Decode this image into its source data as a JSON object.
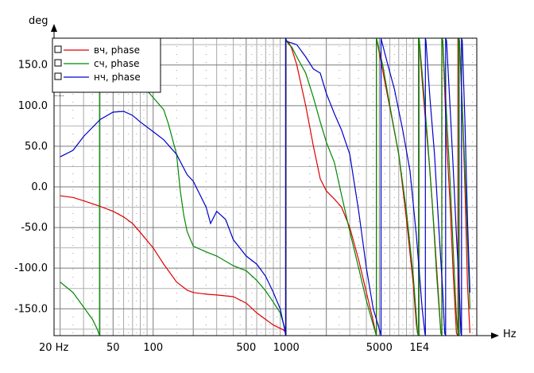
{
  "chart_data": {
    "type": "line",
    "y_unit_label": "deg",
    "x_unit_label": "Hz",
    "x_scale": "log",
    "xlim": [
      18,
      27000
    ],
    "ylim": [
      -183,
      183
    ],
    "grid": true,
    "legend_position": "top-left",
    "x_ticks": [
      {
        "value": 20,
        "label": "20 Hz"
      },
      {
        "value": 50,
        "label": "50"
      },
      {
        "value": 100,
        "label": "100"
      },
      {
        "value": 500,
        "label": "500"
      },
      {
        "value": 1000,
        "label": "1000"
      },
      {
        "value": 5000,
        "label": "5000"
      },
      {
        "value": 10000,
        "label": "1E4"
      }
    ],
    "y_ticks": [
      {
        "value": 150,
        "label": "150.0"
      },
      {
        "value": 100,
        "label": "100.0"
      },
      {
        "value": 50,
        "label": "50.0"
      },
      {
        "value": 0,
        "label": "0.0"
      },
      {
        "value": -50,
        "label": "-50.0"
      },
      {
        "value": -100,
        "label": "-100.0"
      },
      {
        "value": -150,
        "label": "-150.0"
      }
    ],
    "series": [
      {
        "name": "вч, phase",
        "color": "#e00000",
        "points": [
          [
            20,
            -11
          ],
          [
            25,
            -13
          ],
          [
            30,
            -17
          ],
          [
            40,
            -24
          ],
          [
            50,
            -30
          ],
          [
            60,
            -37
          ],
          [
            70,
            -45
          ],
          [
            80,
            -56
          ],
          [
            100,
            -75
          ],
          [
            120,
            -95
          ],
          [
            150,
            -117
          ],
          [
            180,
            -127
          ],
          [
            200,
            -130
          ],
          [
            250,
            -132
          ],
          [
            300,
            -133
          ],
          [
            400,
            -135
          ],
          [
            500,
            -143
          ],
          [
            600,
            -155
          ],
          [
            700,
            -163
          ],
          [
            800,
            -170
          ],
          [
            900,
            -174
          ],
          [
            950,
            -176
          ],
          [
            980,
            -178
          ],
          [
            1000,
            180
          ],
          [
            1050,
            177
          ],
          [
            1100,
            170
          ],
          [
            1200,
            150
          ],
          [
            1400,
            100
          ],
          [
            1600,
            50
          ],
          [
            1800,
            10
          ],
          [
            2000,
            -5
          ],
          [
            2300,
            -15
          ],
          [
            2600,
            -25
          ],
          [
            3000,
            -50
          ],
          [
            3500,
            -90
          ],
          [
            4000,
            -130
          ],
          [
            4500,
            -165
          ],
          [
            4700,
            -180
          ],
          [
            4800,
            180
          ],
          [
            5200,
            150
          ],
          [
            5800,
            110
          ],
          [
            6300,
            80
          ],
          [
            7000,
            40
          ],
          [
            8000,
            -40
          ],
          [
            9000,
            -120
          ],
          [
            9500,
            -170
          ],
          [
            9700,
            -180
          ],
          [
            10000,
            180
          ],
          [
            10500,
            130
          ],
          [
            11000,
            90
          ],
          [
            12000,
            20
          ],
          [
            13000,
            -60
          ],
          [
            14000,
            -140
          ],
          [
            14500,
            -180
          ],
          [
            15000,
            180
          ],
          [
            15500,
            120
          ],
          [
            16000,
            60
          ],
          [
            17000,
            -20
          ],
          [
            18000,
            -110
          ],
          [
            19000,
            -180
          ],
          [
            20000,
            180
          ],
          [
            21000,
            100
          ],
          [
            22000,
            0
          ],
          [
            23000,
            -120
          ],
          [
            24000,
            -180
          ]
        ]
      },
      {
        "name": "сч, phase",
        "color": "#008800",
        "points": [
          [
            20,
            -117
          ],
          [
            25,
            -130
          ],
          [
            30,
            -148
          ],
          [
            35,
            -163
          ],
          [
            38,
            -175
          ],
          [
            39,
            -180
          ],
          [
            40,
            180
          ],
          [
            41,
            178
          ],
          [
            45,
            172
          ],
          [
            50,
            162
          ],
          [
            60,
            152
          ],
          [
            70,
            140
          ],
          [
            80,
            128
          ],
          [
            100,
            110
          ],
          [
            120,
            95
          ],
          [
            130,
            78
          ],
          [
            150,
            40
          ],
          [
            160,
            -5
          ],
          [
            170,
            -35
          ],
          [
            180,
            -55
          ],
          [
            200,
            -73
          ],
          [
            250,
            -80
          ],
          [
            300,
            -85
          ],
          [
            400,
            -97
          ],
          [
            500,
            -103
          ],
          [
            600,
            -115
          ],
          [
            700,
            -128
          ],
          [
            800,
            -142
          ],
          [
            900,
            -155
          ],
          [
            980,
            -175
          ],
          [
            1000,
            180
          ],
          [
            1050,
            175
          ],
          [
            1100,
            172
          ],
          [
            1200,
            160
          ],
          [
            1400,
            140
          ],
          [
            1600,
            110
          ],
          [
            1800,
            80
          ],
          [
            2000,
            55
          ],
          [
            2300,
            30
          ],
          [
            2600,
            -10
          ],
          [
            3000,
            -55
          ],
          [
            3500,
            -100
          ],
          [
            4000,
            -140
          ],
          [
            4500,
            -170
          ],
          [
            4700,
            -180
          ],
          [
            4800,
            180
          ],
          [
            5300,
            150
          ],
          [
            6000,
            100
          ],
          [
            7000,
            40
          ],
          [
            8000,
            -30
          ],
          [
            9000,
            -110
          ],
          [
            9500,
            -160
          ],
          [
            9700,
            -180
          ],
          [
            10000,
            180
          ],
          [
            10500,
            140
          ],
          [
            11500,
            60
          ],
          [
            12500,
            -20
          ],
          [
            13500,
            -110
          ],
          [
            14500,
            -180
          ],
          [
            15000,
            180
          ],
          [
            16000,
            90
          ],
          [
            17000,
            10
          ],
          [
            18000,
            -80
          ],
          [
            19000,
            -160
          ],
          [
            19500,
            -180
          ],
          [
            20000,
            180
          ],
          [
            21000,
            100
          ],
          [
            22500,
            -20
          ],
          [
            24000,
            -150
          ]
        ]
      },
      {
        "name": "нч, phase",
        "color": "#0000cc",
        "points": [
          [
            20,
            37
          ],
          [
            25,
            45
          ],
          [
            30,
            62
          ],
          [
            40,
            83
          ],
          [
            50,
            92
          ],
          [
            60,
            93
          ],
          [
            70,
            88
          ],
          [
            80,
            80
          ],
          [
            100,
            68
          ],
          [
            120,
            58
          ],
          [
            150,
            40
          ],
          [
            180,
            15
          ],
          [
            200,
            7
          ],
          [
            250,
            -25
          ],
          [
            270,
            -45
          ],
          [
            300,
            -30
          ],
          [
            350,
            -40
          ],
          [
            400,
            -65
          ],
          [
            500,
            -85
          ],
          [
            600,
            -95
          ],
          [
            700,
            -110
          ],
          [
            800,
            -130
          ],
          [
            900,
            -150
          ],
          [
            980,
            -178
          ],
          [
            1000,
            180
          ],
          [
            1050,
            178
          ],
          [
            1100,
            177
          ],
          [
            1200,
            175
          ],
          [
            1400,
            160
          ],
          [
            1600,
            145
          ],
          [
            1800,
            140
          ],
          [
            2000,
            115
          ],
          [
            2300,
            90
          ],
          [
            2600,
            70
          ],
          [
            3000,
            40
          ],
          [
            3500,
            -30
          ],
          [
            4000,
            -100
          ],
          [
            4500,
            -150
          ],
          [
            5000,
            -175
          ],
          [
            5100,
            -180
          ],
          [
            5200,
            180
          ],
          [
            5800,
            150
          ],
          [
            6500,
            120
          ],
          [
            7500,
            70
          ],
          [
            8500,
            20
          ],
          [
            9500,
            -60
          ],
          [
            10500,
            -150
          ],
          [
            11000,
            -180
          ],
          [
            11200,
            180
          ],
          [
            12000,
            110
          ],
          [
            13000,
            40
          ],
          [
            14000,
            -50
          ],
          [
            15000,
            -130
          ],
          [
            15500,
            -180
          ],
          [
            16000,
            180
          ],
          [
            17000,
            100
          ],
          [
            18000,
            20
          ],
          [
            19000,
            -60
          ],
          [
            20000,
            -130
          ],
          [
            20500,
            -180
          ],
          [
            21000,
            180
          ],
          [
            22000,
            80
          ],
          [
            23000,
            -40
          ],
          [
            24000,
            -130
          ]
        ]
      }
    ]
  }
}
